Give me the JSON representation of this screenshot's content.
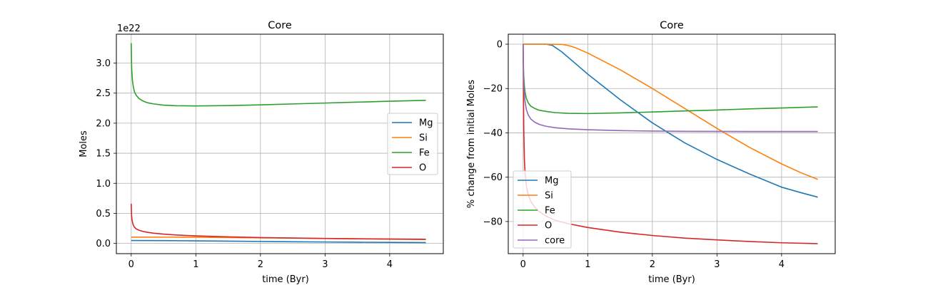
{
  "chart_data": [
    {
      "type": "line",
      "title": "Core",
      "xlabel": "time (Byr)",
      "ylabel": "Moles",
      "offset_label": "1e22",
      "xlim": [
        -0.23,
        4.83
      ],
      "ylim": [
        -0.17,
        3.48
      ],
      "xticks": [
        0,
        1,
        2,
        3,
        4
      ],
      "yticks": [
        0.0,
        0.5,
        1.0,
        1.5,
        2.0,
        2.5,
        3.0
      ],
      "ytick_labels": [
        "0.0",
        "0.5",
        "1.0",
        "1.5",
        "2.0",
        "2.5",
        "3.0"
      ],
      "grid": true,
      "legend": "center-right",
      "series": [
        {
          "name": "Mg",
          "color": "#1f77b4",
          "x": [
            0,
            0.5,
            1,
            1.5,
            2,
            2.5,
            3,
            3.5,
            4,
            4.56
          ],
          "y": [
            0.048,
            0.047,
            0.043,
            0.038,
            0.033,
            0.028,
            0.024,
            0.02,
            0.017,
            0.015
          ]
        },
        {
          "name": "Si",
          "color": "#ff7f0e",
          "x": [
            0,
            0.3,
            0.6,
            1,
            1.5,
            2,
            2.5,
            3,
            3.5,
            4,
            4.56
          ],
          "y": [
            0.105,
            0.105,
            0.104,
            0.103,
            0.098,
            0.093,
            0.088,
            0.082,
            0.076,
            0.07,
            0.065
          ]
        },
        {
          "name": "Fe",
          "color": "#2ca02c",
          "x": [
            0,
            0.005,
            0.01,
            0.02,
            0.03,
            0.05,
            0.08,
            0.12,
            0.18,
            0.25,
            0.35,
            0.5,
            0.7,
            1,
            1.5,
            2,
            2.5,
            3,
            3.5,
            4,
            4.56
          ],
          "y": [
            3.33,
            3.0,
            2.85,
            2.7,
            2.62,
            2.52,
            2.46,
            2.41,
            2.37,
            2.34,
            2.32,
            2.3,
            2.29,
            2.287,
            2.293,
            2.305,
            2.32,
            2.335,
            2.35,
            2.365,
            2.38
          ]
        },
        {
          "name": "O",
          "color": "#d62728",
          "x": [
            0,
            0.005,
            0.01,
            0.02,
            0.03,
            0.05,
            0.08,
            0.12,
            0.18,
            0.25,
            0.35,
            0.5,
            0.7,
            1,
            1.5,
            2,
            2.5,
            3,
            3.5,
            4,
            4.56
          ],
          "y": [
            0.66,
            0.48,
            0.41,
            0.35,
            0.31,
            0.27,
            0.24,
            0.22,
            0.2,
            0.185,
            0.17,
            0.155,
            0.14,
            0.125,
            0.11,
            0.098,
            0.09,
            0.083,
            0.078,
            0.074,
            0.07
          ]
        }
      ]
    },
    {
      "type": "line",
      "title": "Core",
      "xlabel": "time (Byr)",
      "ylabel": "% change from initial Moles",
      "xlim": [
        -0.23,
        4.83
      ],
      "ylim": [
        -94.5,
        4.5
      ],
      "xticks": [
        0,
        1,
        2,
        3,
        4
      ],
      "yticks": [
        0,
        -20,
        -40,
        -60,
        -80
      ],
      "ytick_labels": [
        "0",
        "−20",
        "−40",
        "−60",
        "−80"
      ],
      "grid": true,
      "legend": "lower-left",
      "series": [
        {
          "name": "Mg",
          "color": "#1f77b4",
          "x": [
            0,
            0.2,
            0.35,
            0.45,
            0.6,
            0.8,
            1,
            1.5,
            2,
            2.5,
            3,
            3.5,
            4,
            4.3,
            4.56
          ],
          "y": [
            0,
            0,
            0,
            -0.5,
            -3.5,
            -8.5,
            -13.5,
            -25,
            -35.5,
            -44.5,
            -52,
            -58.5,
            -64.5,
            -67,
            -69
          ]
        },
        {
          "name": "Si",
          "color": "#ff7f0e",
          "x": [
            0,
            0.3,
            0.6,
            0.7,
            0.8,
            1,
            1.5,
            2,
            2.5,
            3,
            3.5,
            4,
            4.3,
            4.56
          ],
          "y": [
            0,
            0,
            -0.1,
            -0.6,
            -1.5,
            -4,
            -11.5,
            -20,
            -29,
            -38,
            -46.5,
            -54,
            -58,
            -61
          ]
        },
        {
          "name": "Fe",
          "color": "#2ca02c",
          "x": [
            0,
            0.005,
            0.01,
            0.02,
            0.03,
            0.05,
            0.08,
            0.12,
            0.18,
            0.25,
            0.35,
            0.5,
            0.7,
            1,
            1.5,
            2,
            2.5,
            3,
            3.5,
            4,
            4.56
          ],
          "y": [
            0,
            -10,
            -14.5,
            -19,
            -21.5,
            -24.5,
            -26.5,
            -28,
            -29,
            -29.8,
            -30.3,
            -30.9,
            -31.2,
            -31.3,
            -31.0,
            -30.6,
            -30.1,
            -29.7,
            -29.2,
            -28.8,
            -28.3
          ]
        },
        {
          "name": "O",
          "color": "#d62728",
          "x": [
            0,
            0.005,
            0.01,
            0.02,
            0.03,
            0.05,
            0.08,
            0.12,
            0.18,
            0.25,
            0.35,
            0.5,
            0.7,
            1,
            1.5,
            2,
            2.5,
            3,
            3.5,
            4,
            4.56
          ],
          "y": [
            0,
            -22,
            -38,
            -52,
            -58,
            -64,
            -68,
            -71,
            -73.5,
            -75.5,
            -77.5,
            -79.5,
            -81,
            -82.7,
            -84.8,
            -86.3,
            -87.5,
            -88.3,
            -89,
            -89.6,
            -90
          ]
        },
        {
          "name": "core",
          "color": "#9467bd",
          "x": [
            0,
            0.005,
            0.01,
            0.02,
            0.03,
            0.05,
            0.08,
            0.12,
            0.18,
            0.25,
            0.35,
            0.5,
            0.7,
            1,
            1.5,
            2,
            2.5,
            3,
            3.5,
            4,
            4.56
          ],
          "y": [
            0,
            -13,
            -18,
            -23,
            -26,
            -29.5,
            -32,
            -33.8,
            -35.2,
            -36.2,
            -37,
            -37.7,
            -38.2,
            -38.6,
            -39,
            -39.2,
            -39.3,
            -39.35,
            -39.4,
            -39.4,
            -39.4
          ]
        }
      ]
    }
  ]
}
